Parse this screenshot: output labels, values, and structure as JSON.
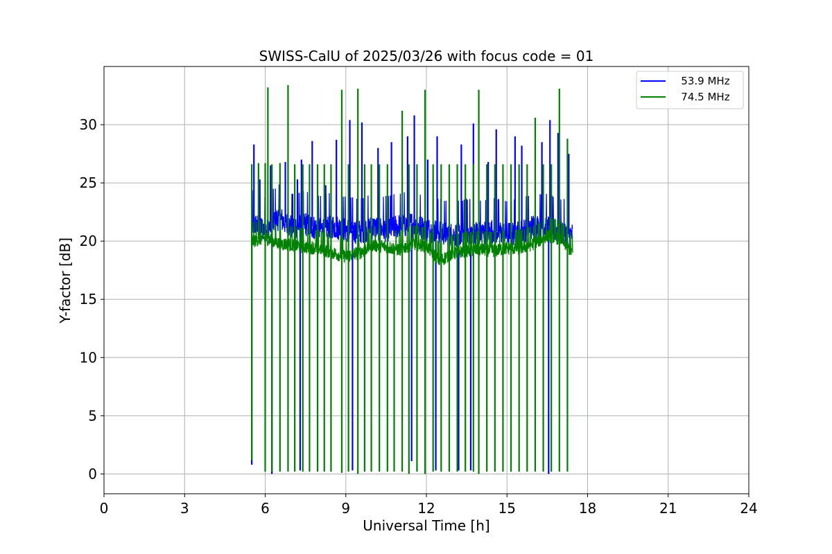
{
  "chart_data": {
    "type": "line",
    "title": "SWISS-CalU of 2025/03/26 with focus code = 01",
    "xlabel": "Universal Time [h]",
    "ylabel": "Y-factor [dB]",
    "xlim": [
      0,
      24
    ],
    "ylim": [
      -1.7,
      35
    ],
    "x_ticks": [
      0,
      3,
      6,
      9,
      12,
      15,
      18,
      21,
      24
    ],
    "x_tick_labels": [
      "0",
      "3",
      "6",
      "9",
      "12",
      "15",
      "18",
      "21",
      "24"
    ],
    "y_ticks": [
      0,
      5,
      10,
      15,
      20,
      25,
      30
    ],
    "y_tick_labels": [
      "0",
      "5",
      "10",
      "15",
      "20",
      "25",
      "30"
    ],
    "grid": true,
    "legend_position": "top-right",
    "x_start": 5.5,
    "x_end": 17.45,
    "series": [
      {
        "name": "53.9 MHz",
        "legend_label": "   53.9 MHz",
        "color": "#0000ff",
        "baseline": [
          [
            5.5,
            21.5
          ],
          [
            6.0,
            21.0
          ],
          [
            6.5,
            22.0
          ],
          [
            7.0,
            21.2
          ],
          [
            7.5,
            21.5
          ],
          [
            8.0,
            21.0
          ],
          [
            8.5,
            21.3
          ],
          [
            9.0,
            21.0
          ],
          [
            9.5,
            20.8
          ],
          [
            10.0,
            21.2
          ],
          [
            10.5,
            21.0
          ],
          [
            11.0,
            21.3
          ],
          [
            11.5,
            21.5
          ],
          [
            12.0,
            21.0
          ],
          [
            12.5,
            20.8
          ],
          [
            13.0,
            20.5
          ],
          [
            13.5,
            20.8
          ],
          [
            14.0,
            20.7
          ],
          [
            14.5,
            20.9
          ],
          [
            15.0,
            20.6
          ],
          [
            15.5,
            20.8
          ],
          [
            16.0,
            21.3
          ],
          [
            16.5,
            21.2
          ],
          [
            17.0,
            20.8
          ],
          [
            17.45,
            20.5
          ]
        ],
        "spike_peaks": [
          [
            5.58,
            28.3
          ],
          [
            5.8,
            25.3
          ],
          [
            6.2,
            26.5
          ],
          [
            6.75,
            26.8
          ],
          [
            7.2,
            25.3
          ],
          [
            7.35,
            27.0
          ],
          [
            7.75,
            28.6
          ],
          [
            8.25,
            24.8
          ],
          [
            8.65,
            28.7
          ],
          [
            9.15,
            30.4
          ],
          [
            9.6,
            30.2
          ],
          [
            10.2,
            28.0
          ],
          [
            10.7,
            28.5
          ],
          [
            11.3,
            29.0
          ],
          [
            11.55,
            30.8
          ],
          [
            12.05,
            27.0
          ],
          [
            12.4,
            29.0
          ],
          [
            13.3,
            28.3
          ],
          [
            13.75,
            30.1
          ],
          [
            14.3,
            26.8
          ],
          [
            14.6,
            29.6
          ],
          [
            15.3,
            29.0
          ],
          [
            15.55,
            28.2
          ],
          [
            16.3,
            28.5
          ],
          [
            16.6,
            30.4
          ],
          [
            16.9,
            29.3
          ],
          [
            17.3,
            27.5
          ]
        ],
        "spike_lows": [
          [
            5.5,
            0.8
          ],
          [
            6.25,
            0.0
          ],
          [
            7.3,
            0.3
          ],
          [
            9.25,
            0.3
          ],
          [
            11.45,
            1.1
          ],
          [
            12.35,
            0.3
          ],
          [
            13.2,
            0.3
          ],
          [
            13.65,
            0.3
          ],
          [
            16.55,
            0.0
          ]
        ]
      },
      {
        "name": "74.5 MHz",
        "legend_label": "   74.5 MHz",
        "color": "#008000",
        "baseline": [
          [
            5.5,
            20.0
          ],
          [
            6.0,
            20.3
          ],
          [
            6.5,
            19.8
          ],
          [
            7.0,
            19.7
          ],
          [
            7.5,
            19.5
          ],
          [
            8.0,
            19.4
          ],
          [
            8.5,
            19.0
          ],
          [
            9.0,
            18.7
          ],
          [
            9.5,
            19.0
          ],
          [
            10.0,
            19.7
          ],
          [
            10.5,
            19.5
          ],
          [
            11.0,
            19.3
          ],
          [
            11.5,
            19.8
          ],
          [
            12.0,
            19.6
          ],
          [
            12.5,
            18.3
          ],
          [
            13.0,
            19.0
          ],
          [
            13.5,
            19.2
          ],
          [
            14.0,
            19.3
          ],
          [
            14.5,
            19.2
          ],
          [
            15.0,
            19.4
          ],
          [
            15.5,
            19.4
          ],
          [
            16.0,
            19.8
          ],
          [
            16.5,
            20.5
          ],
          [
            17.0,
            20.2
          ],
          [
            17.45,
            19.0
          ]
        ],
        "spike_peaks": [
          [
            5.5,
            26.6
          ],
          [
            5.75,
            26.7
          ],
          [
            6.0,
            26.7
          ],
          [
            6.1,
            33.2
          ],
          [
            6.25,
            26.6
          ],
          [
            6.55,
            26.7
          ],
          [
            6.85,
            33.4
          ],
          [
            7.1,
            26.6
          ],
          [
            7.4,
            26.6
          ],
          [
            7.65,
            26.6
          ],
          [
            7.95,
            26.6
          ],
          [
            8.2,
            26.6
          ],
          [
            8.45,
            26.6
          ],
          [
            8.85,
            33.0
          ],
          [
            9.1,
            26.6
          ],
          [
            9.45,
            33.1
          ],
          [
            9.7,
            26.6
          ],
          [
            9.95,
            26.6
          ],
          [
            10.25,
            26.6
          ],
          [
            10.55,
            26.6
          ],
          [
            11.1,
            31.2
          ],
          [
            11.35,
            26.6
          ],
          [
            11.65,
            26.6
          ],
          [
            11.95,
            33.0
          ],
          [
            12.25,
            26.6
          ],
          [
            12.55,
            26.6
          ],
          [
            12.85,
            26.6
          ],
          [
            13.15,
            26.6
          ],
          [
            13.45,
            26.6
          ],
          [
            13.75,
            26.6
          ],
          [
            13.95,
            33.0
          ],
          [
            14.25,
            26.6
          ],
          [
            14.55,
            26.6
          ],
          [
            14.85,
            26.6
          ],
          [
            15.15,
            26.6
          ],
          [
            15.45,
            26.6
          ],
          [
            15.75,
            26.6
          ],
          [
            16.05,
            30.6
          ],
          [
            16.35,
            26.6
          ],
          [
            16.65,
            26.6
          ],
          [
            16.95,
            33.1
          ],
          [
            17.25,
            28.8
          ]
        ],
        "spike_lows": [
          [
            5.5,
            1.2
          ],
          [
            6.0,
            0.2
          ],
          [
            6.25,
            0.2
          ],
          [
            6.55,
            0.2
          ],
          [
            6.85,
            0.2
          ],
          [
            7.1,
            0.2
          ],
          [
            7.4,
            0.2
          ],
          [
            7.65,
            0.2
          ],
          [
            7.95,
            0.2
          ],
          [
            8.2,
            0.2
          ],
          [
            8.45,
            0.2
          ],
          [
            8.85,
            0.1
          ],
          [
            9.1,
            0.2
          ],
          [
            9.45,
            0.0
          ],
          [
            9.7,
            0.2
          ],
          [
            9.95,
            0.2
          ],
          [
            10.25,
            0.2
          ],
          [
            10.55,
            0.2
          ],
          [
            10.8,
            0.2
          ],
          [
            11.1,
            0.2
          ],
          [
            11.35,
            0.0
          ],
          [
            11.65,
            0.2
          ],
          [
            11.95,
            0.0
          ],
          [
            12.25,
            0.2
          ],
          [
            12.55,
            0.2
          ],
          [
            12.85,
            0.2
          ],
          [
            13.15,
            0.2
          ],
          [
            13.45,
            0.2
          ],
          [
            13.75,
            0.2
          ],
          [
            13.95,
            0.0
          ],
          [
            14.25,
            0.2
          ],
          [
            14.55,
            0.2
          ],
          [
            14.85,
            0.2
          ],
          [
            15.15,
            0.2
          ],
          [
            15.45,
            0.2
          ],
          [
            15.75,
            0.2
          ],
          [
            16.05,
            0.2
          ],
          [
            16.35,
            0.2
          ],
          [
            16.65,
            0.2
          ],
          [
            16.95,
            0.2
          ],
          [
            17.25,
            0.2
          ]
        ]
      }
    ]
  }
}
